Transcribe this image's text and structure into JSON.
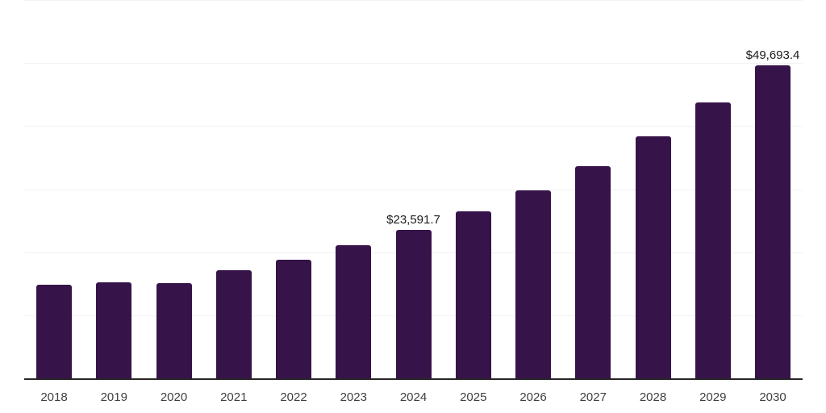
{
  "chart_data": {
    "type": "bar",
    "title": "",
    "xlabel": "",
    "ylabel": "",
    "categories": [
      "2018",
      "2019",
      "2020",
      "2021",
      "2022",
      "2023",
      "2024",
      "2025",
      "2026",
      "2027",
      "2028",
      "2029",
      "2030"
    ],
    "values": [
      14800,
      15200,
      15100,
      17200,
      18800,
      21100,
      23591.7,
      26500,
      29800,
      33700,
      38400,
      43800,
      49693.4
    ],
    "value_labels": {
      "2024": "$23,591.7",
      "2030": "$49,693.4"
    },
    "ylim": [
      0,
      60000
    ],
    "y_gridline_step": 10000,
    "grid": "horizontal",
    "legend": "none",
    "y_axis_tick_labels": "none"
  },
  "colors": {
    "bar": "#361349",
    "gridline": "#f2f2f2",
    "axis_line": "#262626",
    "value_label": "#1a1a1a",
    "tick_label": "#3f3f3f",
    "background": "#ffffff"
  }
}
